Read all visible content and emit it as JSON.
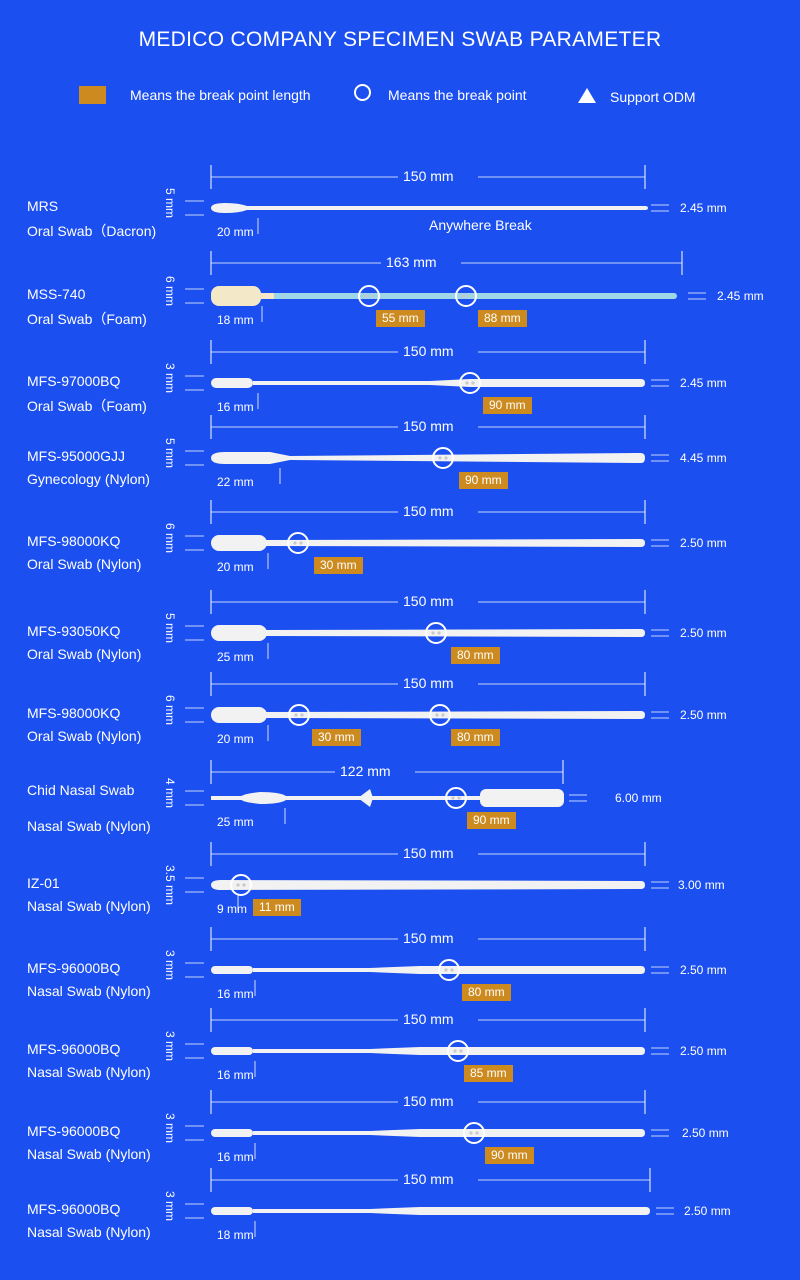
{
  "header": {
    "title": "MEDICO COMPANY SPECIMEN SWAB PARAMETER"
  },
  "legend": {
    "break_length": "Means the break point length",
    "break_point": "Means the break point",
    "odm": "Support ODM"
  },
  "colors": {
    "background": "#1b4ff0",
    "tag": "#cc8a1f",
    "swab": "#f2f2f2",
    "foam_shaft": "#9fd7e6"
  },
  "swabs": [
    {
      "model": "MRS",
      "type": "Oral Swab（Dacron)",
      "total": "150 mm",
      "tip_width": "5 mm",
      "tip_length": "20 mm",
      "shaft": "2.45 mm",
      "note": "Anywhere Break",
      "breaks": []
    },
    {
      "model": "MSS-740",
      "type": "Oral Swab（Foam)",
      "total": "163 mm",
      "tip_width": "6 mm",
      "tip_length": "18 mm",
      "shaft": "2.45 mm",
      "breaks": [
        "55 mm",
        "88 mm"
      ]
    },
    {
      "model": "MFS-97000BQ",
      "type": "Oral Swab（Foam)",
      "total": "150 mm",
      "tip_width": "3 mm",
      "tip_length": "16 mm",
      "shaft": "2.45 mm",
      "breaks": [
        "90 mm"
      ]
    },
    {
      "model": "MFS-95000GJJ",
      "type": "Gynecology (Nylon)",
      "total": "150 mm",
      "tip_width": "5 mm",
      "tip_length": "22 mm",
      "shaft": "4.45 mm",
      "breaks": [
        "90 mm"
      ]
    },
    {
      "model": "MFS-98000KQ",
      "type": "Oral Swab (Nylon)",
      "total": "150 mm",
      "tip_width": "6 mm",
      "tip_length": "20 mm",
      "shaft": "2.50 mm",
      "breaks": [
        "30 mm"
      ]
    },
    {
      "model": "MFS-93050KQ",
      "type": "Oral Swab (Nylon)",
      "total": "150 mm",
      "tip_width": "5 mm",
      "tip_length": "25 mm",
      "shaft": "2.50 mm",
      "breaks": [
        "80 mm"
      ]
    },
    {
      "model": "MFS-98000KQ",
      "type": "Oral Swab (Nylon)",
      "total": "150 mm",
      "tip_width": "6 mm",
      "tip_length": "20 mm",
      "shaft": "2.50 mm",
      "breaks": [
        "30 mm",
        "80 mm"
      ]
    },
    {
      "model": "Chid Nasal Swab",
      "type": "Nasal Swab (Nylon)",
      "total": "122 mm",
      "tip_width": "4 mm",
      "tip_length": "25 mm",
      "shaft": "6.00 mm",
      "breaks": [
        "90 mm"
      ]
    },
    {
      "model": "IZ-01",
      "type": "Nasal Swab (Nylon)",
      "total": "150 mm",
      "tip_width": "3.5 mm",
      "tip_length": "9 mm",
      "shaft": "3.00 mm",
      "breaks": [
        "11 mm"
      ]
    },
    {
      "model": "MFS-96000BQ",
      "type": "Nasal Swab (Nylon)",
      "total": "150 mm",
      "tip_width": "3 mm",
      "tip_length": "16 mm",
      "shaft": "2.50 mm",
      "breaks": [
        "80 mm"
      ]
    },
    {
      "model": "MFS-96000BQ",
      "type": "Nasal Swab (Nylon)",
      "total": "150 mm",
      "tip_width": "3 mm",
      "tip_length": "16 mm",
      "shaft": "2.50 mm",
      "breaks": [
        "85 mm"
      ]
    },
    {
      "model": "MFS-96000BQ",
      "type": "Nasal Swab (Nylon)",
      "total": "150 mm",
      "tip_width": "3 mm",
      "tip_length": "16 mm",
      "shaft": "2.50 mm",
      "breaks": [
        "90 mm"
      ]
    },
    {
      "model": "MFS-96000BQ",
      "type": "Nasal Swab (Nylon)",
      "total": "150 mm",
      "tip_width": "3 mm",
      "tip_length": "18 mm",
      "shaft": "2.50 mm",
      "breaks": []
    }
  ]
}
